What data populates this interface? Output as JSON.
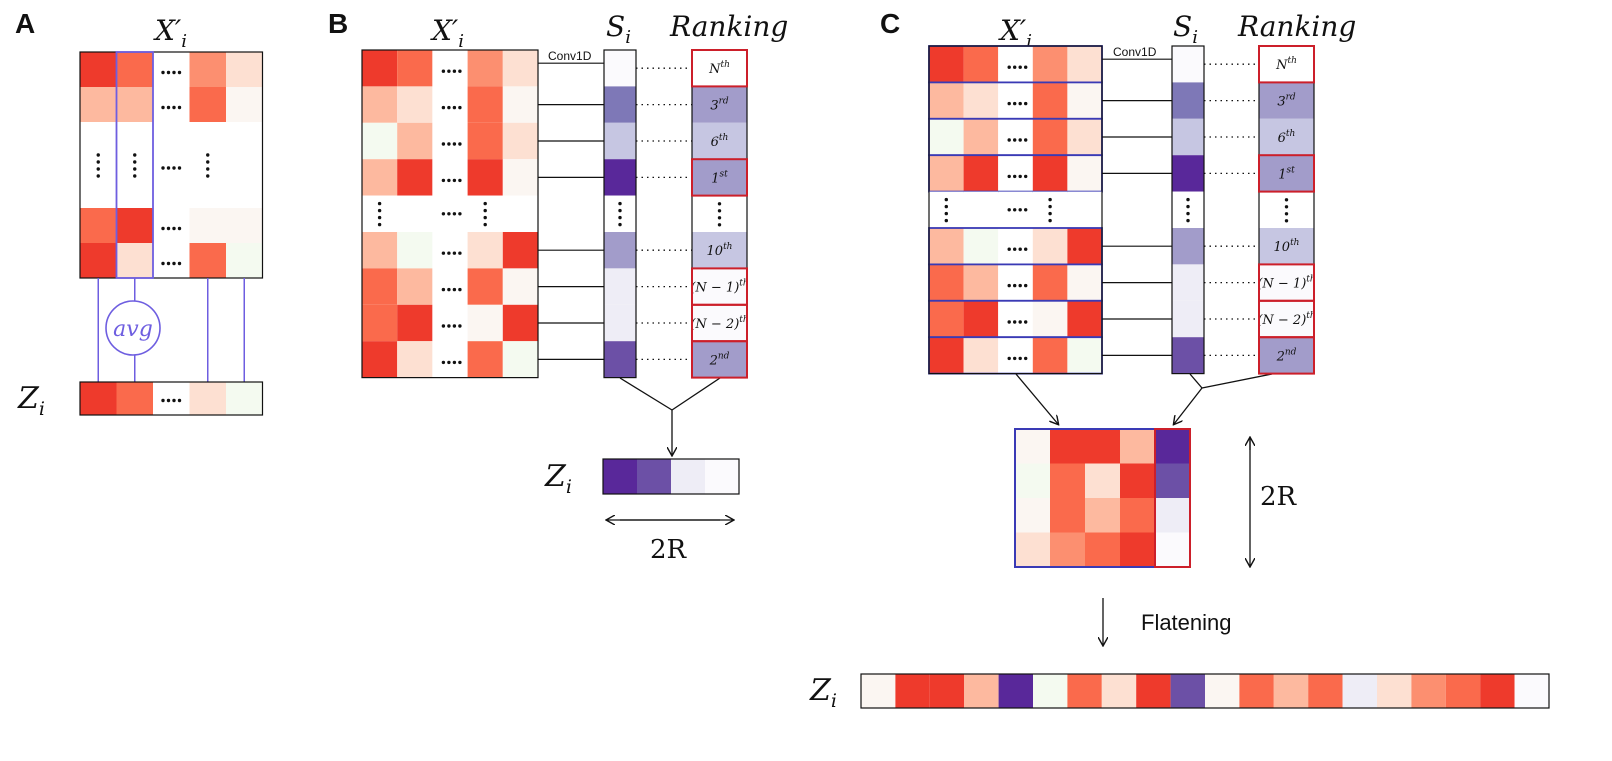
{
  "panels": {
    "a": {
      "label": "A",
      "x_title": "X′",
      "x_sub": "i",
      "avg_label": "avg",
      "z_label": "Z",
      "z_sub": "i"
    },
    "b": {
      "label": "B",
      "x_title": "X′",
      "x_sub": "i",
      "s_label": "S",
      "s_sub": "i",
      "ranking_title": "Ranking",
      "conv_label": "Conv1D",
      "z_label": "Z",
      "z_sub": "i",
      "width_label": "2R"
    },
    "c": {
      "label": "C",
      "x_title": "X′",
      "x_sub": "i",
      "s_label": "S",
      "s_sub": "i",
      "ranking_title": "Ranking",
      "conv_label": "Conv1D",
      "height_label": "2R",
      "flatten_label": "Flatening",
      "z_label": "Z",
      "z_sub": "i"
    }
  },
  "ranking": [
    {
      "base": "N",
      "sup": "th",
      "selected": true
    },
    {
      "base": "3",
      "sup": "rd",
      "selected": false
    },
    {
      "base": "6",
      "sup": "th",
      "selected": false
    },
    {
      "base": "1",
      "sup": "st",
      "selected": true
    },
    {
      "base": "⋮",
      "sup": "",
      "selected": false
    },
    {
      "base": "10",
      "sup": "th",
      "selected": false
    },
    {
      "base": "(N − 1)",
      "sup": "th",
      "selected": true
    },
    {
      "base": "(N − 2)",
      "sup": "th",
      "selected": true
    },
    {
      "base": "2",
      "sup": "nd",
      "selected": true
    }
  ],
  "colors": {
    "red_scale": [
      "#fbf6f2",
      "#fde0d2",
      "#fdb99f",
      "#fc8f70",
      "#fa6a4c",
      "#ee3a2c"
    ],
    "purple_scale": [
      "#fbfafd",
      "#eeedf6",
      "#c6c6e2",
      "#a29cca",
      "#7e78b7",
      "#6c50a6",
      "#59289a"
    ],
    "outline_blue": "#3a3ab5",
    "outline_red": "#cc1f2a",
    "connector_purple": "#6e5ee0"
  }
}
